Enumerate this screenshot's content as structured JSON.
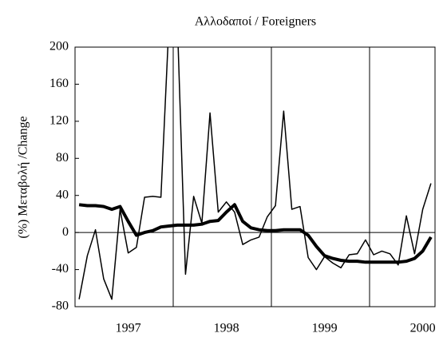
{
  "chart_data": {
    "type": "line",
    "title": "Αλλοδαποί  / Foreigners",
    "y_label": "(%) Μεταβολή /Change",
    "categories": [
      null,
      null,
      null,
      null,
      null,
      null,
      "1997",
      null,
      null,
      null,
      null,
      null,
      null,
      null,
      null,
      null,
      null,
      null,
      "1998",
      null,
      null,
      null,
      null,
      null,
      null,
      null,
      null,
      null,
      null,
      null,
      "1999",
      null,
      null,
      null,
      null,
      null,
      null,
      null,
      null,
      null,
      null,
      null,
      "2000",
      null
    ],
    "series": [
      {
        "color": "#000000",
        "width": 1.5,
        "values": [
          -72,
          -25,
          3,
          -50,
          -72,
          25,
          -22,
          -16,
          38,
          39,
          38,
          230,
          230,
          -45,
          39,
          10,
          129,
          22,
          33,
          22,
          -13,
          -8,
          -5,
          17,
          29,
          131,
          25,
          28,
          -27,
          -40,
          -26,
          -33,
          -38,
          -24,
          -23,
          -8,
          -24,
          -20,
          -23,
          -35,
          18,
          -23,
          25,
          53
        ]
      },
      {
        "color": "#000000",
        "width": 4,
        "values": [
          30,
          29,
          29,
          28,
          25,
          28,
          12,
          -3,
          0,
          2,
          6,
          7,
          8,
          8,
          8,
          9,
          12,
          13,
          22,
          30,
          12,
          5,
          3,
          2,
          2,
          3,
          3,
          3,
          -3,
          -15,
          -25,
          -28,
          -30,
          -31,
          -31,
          -32,
          -32,
          -32,
          -32,
          -32,
          -31,
          -28,
          -20,
          -5
        ]
      }
    ],
    "ylim": [
      -80,
      200
    ],
    "yticks": [
      -80,
      -40,
      0,
      40,
      80,
      120,
      160,
      200
    ]
  }
}
